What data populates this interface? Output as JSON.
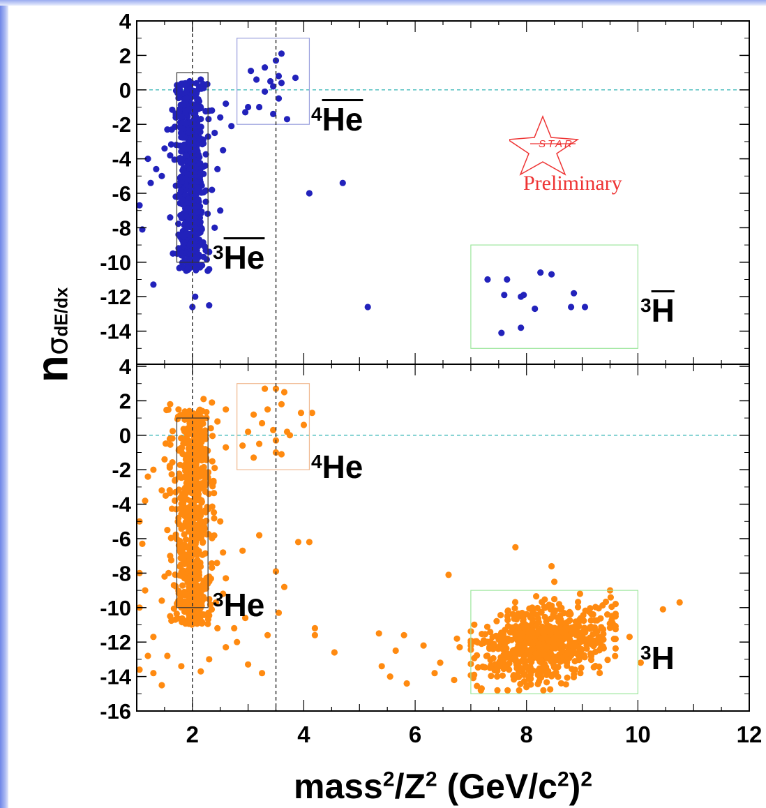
{
  "chart_data": [
    {
      "type": "scatter",
      "panel": "top",
      "x": {
        "min": 1,
        "max": 12,
        "ticks": [
          2,
          4,
          6,
          8,
          10,
          12
        ]
      },
      "y": {
        "min": -16,
        "max": 4,
        "ticks": [
          4,
          2,
          0,
          -2,
          -4,
          -6,
          -8,
          -10,
          -12,
          -14
        ]
      },
      "marker_color": "#2222bb",
      "reference_lines": {
        "horizontal": 0,
        "horizontal_color": "#4fbfbf",
        "vertical": [
          2.0,
          3.5
        ]
      },
      "selection_boxes": [
        {
          "species": "3He-bar",
          "x": [
            1.72,
            2.28
          ],
          "y": [
            -10,
            1
          ],
          "color": "#333333"
        },
        {
          "species": "4He-bar",
          "x": [
            2.8,
            4.1
          ],
          "y": [
            -2,
            3
          ],
          "color": "#9aa0dd"
        },
        {
          "species": "3H-bar",
          "x": [
            7.0,
            10.0
          ],
          "y": [
            -15,
            -9
          ],
          "color": "#9ce69c"
        }
      ],
      "points": [
        [
          3.6,
          2.1
        ],
        [
          3.5,
          1.7
        ],
        [
          3.3,
          1.3
        ],
        [
          3.05,
          1.1
        ],
        [
          3.55,
          0.8
        ],
        [
          3.85,
          0.7
        ],
        [
          3.4,
          0.5
        ],
        [
          3.15,
          0.6
        ],
        [
          3.6,
          0.4
        ],
        [
          3.45,
          0.2
        ],
        [
          3.3,
          -0.1
        ],
        [
          3.55,
          -0.5
        ],
        [
          3.0,
          -1.0
        ],
        [
          3.2,
          -1.0
        ],
        [
          3.45,
          -1.4
        ],
        [
          3.7,
          -1.7
        ],
        [
          2.95,
          -1.3
        ],
        [
          4.1,
          -6.0
        ],
        [
          4.7,
          -5.4
        ],
        [
          5.15,
          -12.6
        ],
        [
          7.3,
          -11.0
        ],
        [
          7.65,
          -11.0
        ],
        [
          8.25,
          -10.6
        ],
        [
          8.45,
          -10.7
        ],
        [
          7.6,
          -11.9
        ],
        [
          7.9,
          -12.0
        ],
        [
          7.95,
          -11.9
        ],
        [
          8.85,
          -11.8
        ],
        [
          8.15,
          -12.7
        ],
        [
          8.8,
          -12.6
        ],
        [
          9.05,
          -12.6
        ],
        [
          7.9,
          -13.8
        ],
        [
          7.55,
          -14.1
        ],
        [
          1.05,
          -6.7
        ],
        [
          1.1,
          -8.1
        ],
        [
          1.3,
          -11.3
        ],
        [
          1.2,
          -4.0
        ],
        [
          1.35,
          -4.6
        ],
        [
          1.25,
          -5.4
        ],
        [
          1.5,
          -3.4
        ],
        [
          1.55,
          -2.3
        ],
        [
          1.6,
          -3.8
        ],
        [
          1.45,
          -5.0
        ],
        [
          1.7,
          -6.2
        ],
        [
          1.6,
          -7.4
        ],
        [
          1.75,
          -8.4
        ],
        [
          1.65,
          -9.5
        ],
        [
          2.3,
          -12.5
        ],
        [
          2.0,
          -12.6
        ],
        [
          2.05,
          -12.0
        ],
        [
          2.35,
          -1.2
        ],
        [
          2.5,
          -1.6
        ],
        [
          2.4,
          -2.5
        ],
        [
          2.55,
          -3.5
        ],
        [
          2.45,
          -4.6
        ],
        [
          2.6,
          -0.8
        ],
        [
          2.35,
          -5.8
        ],
        [
          2.5,
          -7.0
        ],
        [
          2.4,
          -8.0
        ],
        [
          2.3,
          -9.4
        ],
        [
          2.3,
          -10.4
        ],
        [
          2.7,
          -2.1
        ],
        [
          2.15,
          0.6
        ],
        [
          1.95,
          0.5
        ],
        [
          1.8,
          0.3
        ]
      ],
      "dense_clusters": [
        {
          "x": [
            1.68,
            2.28
          ],
          "y": [
            -10.5,
            0.4
          ],
          "count": 650,
          "seed": 11
        }
      ]
    },
    {
      "type": "scatter",
      "panel": "bottom",
      "x": {
        "min": 1,
        "max": 12,
        "ticks": [
          2,
          4,
          6,
          8,
          10,
          12
        ]
      },
      "y": {
        "min": -16,
        "max": 4,
        "ticks": [
          4,
          2,
          0,
          -2,
          -4,
          -6,
          -8,
          -10,
          -12,
          -14,
          -16
        ]
      },
      "marker_color": "#ff8a10",
      "reference_lines": {
        "horizontal": 0,
        "horizontal_color": "#4fbfbf",
        "vertical": [
          2.0,
          3.5
        ]
      },
      "selection_boxes": [
        {
          "species": "3He",
          "x": [
            1.72,
            2.28
          ],
          "y": [
            -10,
            1
          ],
          "color": "#333333"
        },
        {
          "species": "4He",
          "x": [
            2.8,
            4.1
          ],
          "y": [
            -2,
            3
          ],
          "color": "#f0b890"
        },
        {
          "species": "3H",
          "x": [
            7.0,
            10.0
          ],
          "y": [
            -15,
            -9
          ],
          "color": "#9ce69c"
        }
      ],
      "points": [
        [
          3.5,
          2.7
        ],
        [
          3.65,
          2.5
        ],
        [
          3.3,
          2.7
        ],
        [
          3.6,
          1.8
        ],
        [
          3.95,
          1.3
        ],
        [
          4.15,
          1.3
        ],
        [
          3.35,
          1.5
        ],
        [
          3.1,
          1.2
        ],
        [
          3.25,
          0.7
        ],
        [
          3.45,
          0.3
        ],
        [
          3.7,
          0.2
        ],
        [
          3.0,
          0.2
        ],
        [
          3.5,
          -0.3
        ],
        [
          3.75,
          0.0
        ],
        [
          3.2,
          -0.5
        ],
        [
          3.5,
          -1.0
        ],
        [
          3.1,
          -1.3
        ],
        [
          3.6,
          -1.1
        ],
        [
          2.9,
          -0.6
        ],
        [
          4.0,
          0.6
        ],
        [
          4.1,
          -6.2
        ],
        [
          3.9,
          -6.2
        ],
        [
          3.2,
          -5.8
        ],
        [
          2.9,
          -6.7
        ],
        [
          3.5,
          -7.9
        ],
        [
          3.65,
          -8.8
        ],
        [
          4.2,
          -11.2
        ],
        [
          4.2,
          -11.6
        ],
        [
          4.55,
          -12.6
        ],
        [
          5.35,
          -11.5
        ],
        [
          5.8,
          -11.6
        ],
        [
          5.65,
          -12.5
        ],
        [
          6.15,
          -12.2
        ],
        [
          5.4,
          -13.4
        ],
        [
          5.55,
          -14.0
        ],
        [
          5.85,
          -14.4
        ],
        [
          6.35,
          -13.8
        ],
        [
          6.45,
          -13.2
        ],
        [
          6.75,
          -11.8
        ],
        [
          6.8,
          -12.3
        ],
        [
          6.6,
          -8.1
        ],
        [
          6.7,
          -14.2
        ],
        [
          7.8,
          -6.5
        ],
        [
          8.45,
          -7.6
        ],
        [
          9.5,
          -9.0
        ],
        [
          10.75,
          -9.7
        ],
        [
          10.45,
          -10.1
        ],
        [
          10.05,
          -13.2
        ],
        [
          9.85,
          -11.7
        ],
        [
          8.5,
          -8.5
        ],
        [
          2.45,
          -11.2
        ],
        [
          2.6,
          -12.3
        ],
        [
          2.75,
          -11.2
        ],
        [
          2.3,
          -13.0
        ],
        [
          2.15,
          -13.7
        ],
        [
          1.8,
          -13.4
        ],
        [
          1.55,
          -12.8
        ],
        [
          1.3,
          -13.8
        ],
        [
          1.45,
          -14.5
        ],
        [
          1.05,
          -13.6
        ],
        [
          1.2,
          -12.8
        ],
        [
          1.3,
          -11.7
        ],
        [
          1.05,
          -10.0
        ],
        [
          1.15,
          -9.0
        ],
        [
          1.05,
          -8.0
        ],
        [
          1.1,
          -6.3
        ],
        [
          1.05,
          -5.0
        ],
        [
          1.15,
          -3.8
        ],
        [
          1.2,
          -2.4
        ],
        [
          1.3,
          -2.0
        ],
        [
          1.5,
          -1.4
        ],
        [
          1.45,
          -3.2
        ],
        [
          1.55,
          -5.5
        ],
        [
          1.6,
          -7.0
        ],
        [
          1.5,
          -8.2
        ],
        [
          1.45,
          -9.6
        ],
        [
          1.6,
          -10.5
        ],
        [
          2.5,
          -5.0
        ],
        [
          2.55,
          -6.8
        ],
        [
          2.6,
          -8.3
        ],
        [
          2.55,
          -9.2
        ],
        [
          2.4,
          -1.9
        ],
        [
          2.6,
          -0.7
        ],
        [
          2.45,
          0.8
        ],
        [
          2.35,
          1.9
        ],
        [
          2.6,
          1.5
        ],
        [
          1.6,
          1.8
        ],
        [
          1.75,
          1.5
        ],
        [
          2.2,
          2.1
        ],
        [
          2.95,
          -10.6
        ],
        [
          2.8,
          -12.0
        ],
        [
          3.0,
          -13.3
        ],
        [
          3.25,
          -13.8
        ],
        [
          3.35,
          -11.6
        ],
        [
          3.55,
          -10.3
        ]
      ],
      "dense_clusters": [
        {
          "x": [
            1.6,
            2.4
          ],
          "y": [
            -11.0,
            1.5
          ],
          "count": 700,
          "seed": 23
        },
        {
          "x": [
            7.0,
            9.6
          ],
          "y": [
            -14.8,
            -9.2
          ],
          "count": 650,
          "seed": 37,
          "shape": "ellipse"
        }
      ]
    }
  ],
  "y_axis_label": {
    "main": "n",
    "sigma": "σ",
    "subscript": "dE/dx"
  },
  "x_axis_label": {
    "part1": "mass",
    "part2": "/Z",
    "part3": " (GeV/c",
    "part4": ")"
  },
  "panel_labels": {
    "top_he4": {
      "iso": "4",
      "name": "He"
    },
    "top_he3": {
      "iso": "3",
      "name": "He"
    },
    "top_h3": {
      "iso": "3",
      "name": "H"
    },
    "bottom_he4": {
      "iso": "4",
      "name": "He"
    },
    "bottom_he3": {
      "iso": "3",
      "name": "He"
    },
    "bottom_h3": {
      "iso": "3",
      "name": "H"
    }
  },
  "watermark": {
    "logo": "STAR",
    "text": "Preliminary",
    "color": "#e33333"
  }
}
